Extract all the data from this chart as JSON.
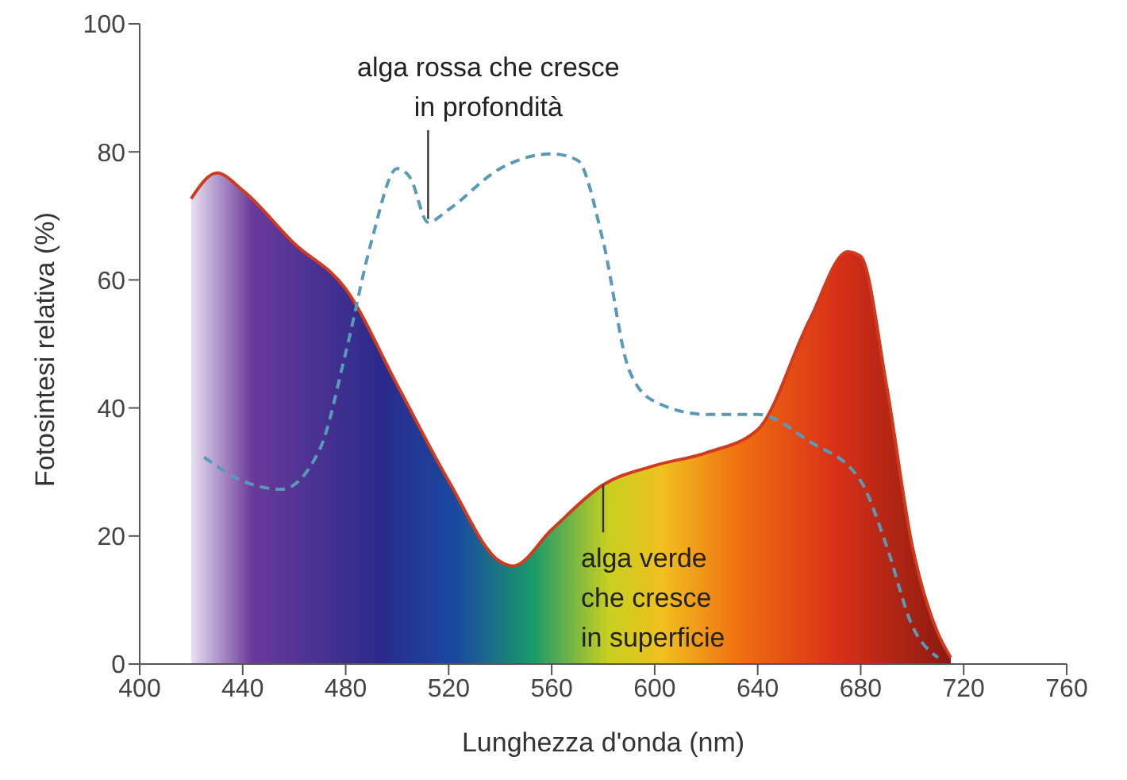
{
  "chart_data": {
    "type": "area",
    "xlabel": "Lunghezza d'onda (nm)",
    "ylabel": "Fotosintesi relativa (%)",
    "xlim": [
      400,
      760
    ],
    "xticks": [
      400,
      440,
      480,
      520,
      560,
      600,
      640,
      680,
      720,
      760
    ],
    "ylim": [
      0,
      100
    ],
    "yticks": [
      0,
      20,
      40,
      60,
      80,
      100
    ],
    "grid": false,
    "series": [
      {
        "color": "#d23a1e",
        "x": [
          420,
          430,
          440,
          460,
          480,
          500,
          520,
          540,
          545,
          560,
          580,
          600,
          620,
          640,
          660,
          675,
          680,
          690,
          700,
          710,
          715
        ],
        "values": [
          72.7,
          76.7,
          74,
          65.7,
          58.6,
          43.6,
          28.6,
          16,
          15.3,
          21,
          28,
          31,
          33,
          36.6,
          53.6,
          64.4,
          63.7,
          43.6,
          18.5,
          4.8,
          1
        ]
      },
      {
        "type": "line",
        "color": "#5a9ab8",
        "line_style": "dashed",
        "x": [
          425,
          440,
          455,
          470,
          480,
          490,
          500,
          505,
          512,
          520,
          540,
          560,
          570,
          580,
          590,
          600,
          620,
          640,
          660,
          680,
          690,
          700,
          710
        ],
        "values": [
          32.3,
          28.6,
          27.3,
          33.6,
          48.6,
          66,
          77.4,
          76,
          69,
          71,
          77.4,
          79.7,
          78.7,
          66,
          46,
          41,
          39,
          39,
          34.8,
          28.6,
          18.5,
          6,
          1
        ]
      }
    ],
    "annotations": [
      {
        "text": "alga rossa che cresce\nin profondità",
        "x": 512,
        "y": 69
      },
      {
        "text": "alga verde\nche cresce\nin superficie",
        "x": 580,
        "y": 28
      }
    ]
  }
}
